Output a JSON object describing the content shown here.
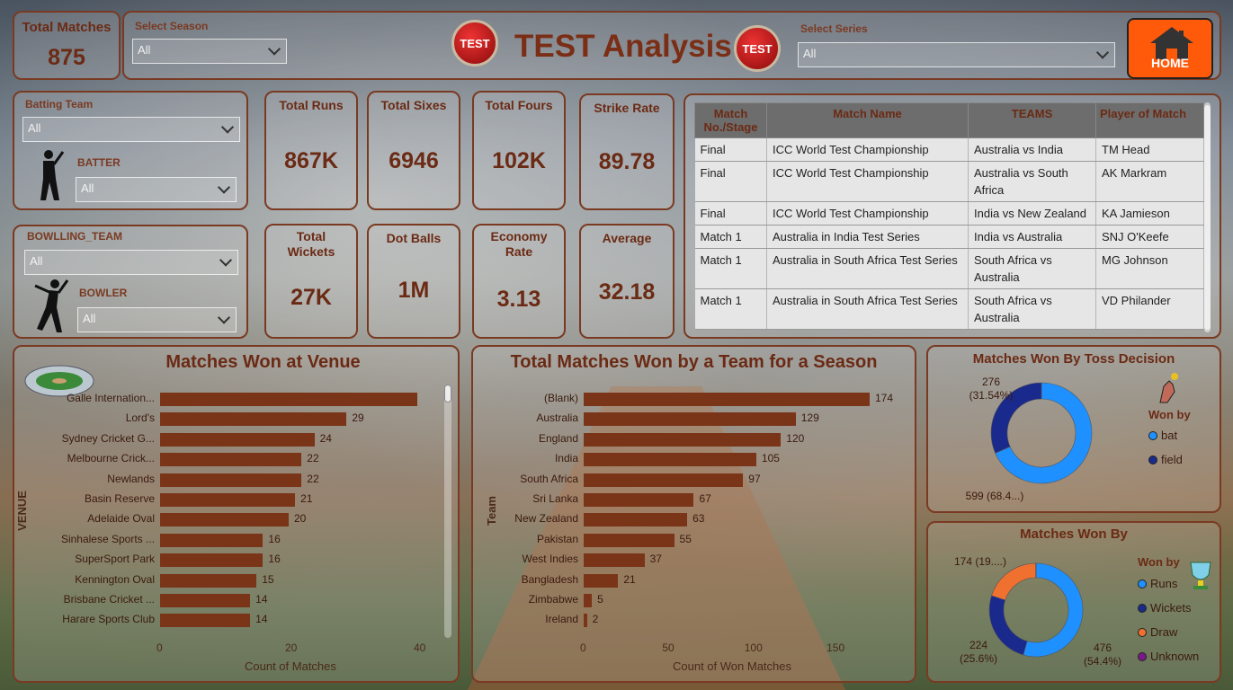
{
  "header": {
    "total_matches_label": "Total Matches",
    "total_matches_value": "875",
    "season_label": "Select Season",
    "season_value": "All",
    "title": "TEST Analysis",
    "badge_text": "TEST",
    "series_label": "Select Series",
    "series_value": "All",
    "home_label": "HOME"
  },
  "filters": {
    "batting_team_label": "Batting Team",
    "batting_team_value": "All",
    "batter_label": "BATTER",
    "batter_value": "All",
    "bowling_team_label": "BOWLLING_TEAM",
    "bowling_team_value": "All",
    "bowler_label": "BOWLER",
    "bowler_value": "All"
  },
  "kpis": [
    {
      "label": "Total Runs",
      "value": "867K"
    },
    {
      "label": "Total Sixes",
      "value": "6946"
    },
    {
      "label": "Total Fours",
      "value": "102K"
    },
    {
      "label": "Strike Rate",
      "value": "89.78"
    },
    {
      "label": "Total Wickets",
      "value": "27K"
    },
    {
      "label": "Dot Balls",
      "value": "1M"
    },
    {
      "label": "Economy Rate",
      "value": "3.13"
    },
    {
      "label": "Average",
      "value": "32.18"
    }
  ],
  "matches_table": {
    "headers": [
      "Match No./Stage",
      "Match Name",
      "TEAMS",
      "Player of Match"
    ],
    "rows": [
      [
        "Final",
        "ICC World Test Championship",
        "Australia vs India",
        "TM Head"
      ],
      [
        "Final",
        "ICC World Test Championship",
        "Australia vs South Africa",
        "AK Markram"
      ],
      [
        "Final",
        "ICC World Test Championship",
        "India vs New Zealand",
        "KA Jamieson"
      ],
      [
        "Match 1",
        "Australia in India Test Series",
        "India vs Australia",
        "SNJ O'Keefe"
      ],
      [
        "Match 1",
        "Australia in South Africa Test Series",
        "South Africa vs Australia",
        "MG Johnson"
      ],
      [
        "Match 1",
        "Australia in South Africa Test Series",
        "South Africa vs Australia",
        "VD Philander"
      ]
    ]
  },
  "chart_data": [
    {
      "type": "bar",
      "orientation": "horizontal",
      "title": "Matches Won at Venue",
      "xlabel": "Count of Matches",
      "ylabel": "VENUE",
      "categories": [
        "Galle Internation...",
        "Lord's",
        "Sydney Cricket G...",
        "Melbourne Crick...",
        "Newlands",
        "Basin Reserve",
        "Adelaide Oval",
        "Sinhalese Sports ...",
        "SuperSport Park",
        "Kennington Oval",
        "Brisbane Cricket ...",
        "Harare Sports Club"
      ],
      "values": [
        40,
        29,
        24,
        22,
        22,
        21,
        20,
        16,
        16,
        15,
        14,
        14
      ],
      "value_labels": [
        "",
        "29",
        "24",
        "22",
        "22",
        "21",
        "20",
        "16",
        "16",
        "15",
        "14",
        "14"
      ],
      "xlim": [
        0,
        43
      ],
      "xticks": [
        "0",
        "20",
        "40"
      ],
      "color": "#7a3418"
    },
    {
      "type": "bar",
      "orientation": "horizontal",
      "title": "Total Matches Won by a Team for a Season",
      "xlabel": "Count of Won Matches",
      "ylabel": "Team",
      "categories": [
        "(Blank)",
        "Australia",
        "England",
        "India",
        "South Africa",
        "Sri Lanka",
        "New Zealand",
        "Pakistan",
        "West Indies",
        "Bangladesh",
        "Zimbabwe",
        "Ireland"
      ],
      "values": [
        174,
        129,
        120,
        105,
        97,
        67,
        63,
        55,
        37,
        21,
        5,
        2
      ],
      "xlim": [
        0,
        177
      ],
      "xticks": [
        "0",
        "50",
        "100",
        "150"
      ],
      "color": "#7a3418"
    },
    {
      "type": "pie",
      "subtype": "donut",
      "title": "Matches Won By Toss Decision",
      "legend_title": "Won by",
      "labels": [
        "bat",
        "field"
      ],
      "values": [
        599,
        276
      ],
      "slice_labels": [
        "599 (68.4...)",
        "276\n(31.54%)"
      ],
      "colors": [
        "#1e90ff",
        "#1a2a8c"
      ]
    },
    {
      "type": "pie",
      "subtype": "donut",
      "title": "Matches Won By",
      "legend_title": "Won by",
      "labels": [
        "Runs",
        "Wickets",
        "Draw",
        "Unknown"
      ],
      "values": [
        476,
        224,
        174,
        1
      ],
      "slice_labels": [
        "476\n(54.4%)",
        "224\n(25.6%)",
        "174 (19....)",
        ""
      ],
      "colors": [
        "#1e90ff",
        "#1a2a8c",
        "#f07030",
        "#7a1a8a"
      ]
    }
  ]
}
